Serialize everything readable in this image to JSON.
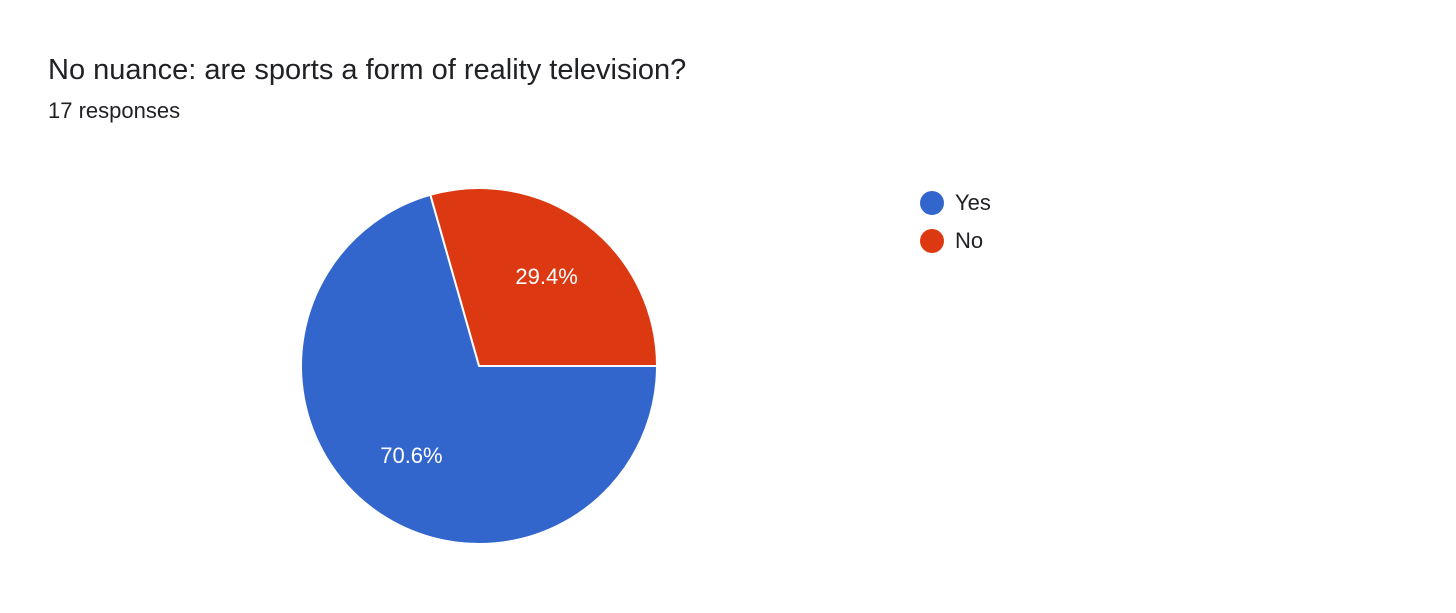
{
  "header": {
    "title": "No nuance: are sports a form of reality television?",
    "responses": "17 responses"
  },
  "chart_data": {
    "type": "pie",
    "title": "No nuance: are sports a form of reality television?",
    "total_responses": 17,
    "legend_position": "right",
    "slices": [
      {
        "name": "Yes",
        "value": 12,
        "percent_label": "70.6%",
        "color": "#3366cc"
      },
      {
        "name": "No",
        "value": 5,
        "percent_label": "29.4%",
        "color": "#dc3912"
      }
    ]
  }
}
